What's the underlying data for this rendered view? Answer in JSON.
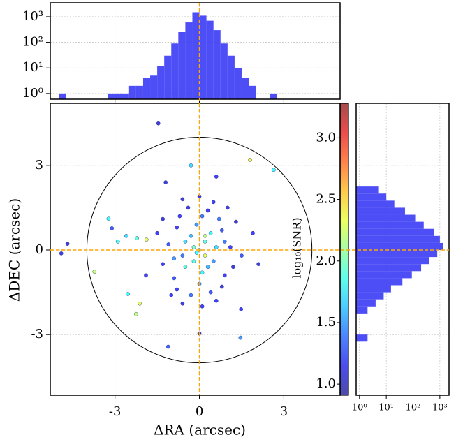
{
  "chart_data": [
    {
      "type": "scatter",
      "xlabel": "ΔRA (arcsec)",
      "ylabel": "ΔDEC (arcsec)",
      "x": [
        -1.46,
        1.8,
        2.64,
        -4.69,
        -4.91,
        -3.73,
        -3.23,
        -3.11,
        -2.22,
        -1.88,
        -2.12,
        -2.25,
        -2.54,
        -1.11,
        0,
        1.46,
        1.48,
        -2.6,
        -2.9,
        -1.9,
        1.9,
        2.1,
        -0.3,
        0.6,
        -1.2,
        0,
        0.2,
        -0.3,
        0.5,
        -0.6,
        0.1,
        -0.1,
        0.8,
        -0.8,
        0.9,
        -0.9,
        0.3,
        -0.4,
        0.4,
        -0.3,
        1.1,
        -1.1,
        0.6,
        -0.5,
        0.2,
        -0.2,
        0.7,
        -0.7,
        0.8,
        -0.8,
        1.2,
        -1.3,
        0,
        0.1,
        1.3,
        -1.3,
        0.4,
        -0.5,
        0.3,
        -0.2,
        0.9,
        -0.9,
        0.5,
        -0.6,
        0.6,
        -0.6,
        1,
        -1,
        0,
        0.1,
        -1.5,
        1.5,
        0.2,
        -0.1
      ],
      "y": [
        4.49,
        3.2,
        2.84,
        0.22,
        -0.12,
        -0.77,
        1.11,
        0.77,
        0.42,
        0.37,
        -1.9,
        -2.27,
        -1.56,
        -3.43,
        -2.96,
        -3.11,
        -2.1,
        0.5,
        0.3,
        -0.9,
        0.6,
        -0.5,
        3,
        2.6,
        2.4,
        0,
        0.3,
        0.5,
        -0.4,
        -0.2,
        -0.8,
        0.9,
        0.7,
        0.8,
        -0.9,
        -1,
        1.4,
        1.5,
        -1.5,
        -1.6,
        0.1,
        0.2,
        0.1,
        -0.6,
        -0.2,
        0.1,
        1.1,
        1.2,
        -1.3,
        -1.4,
        -0.6,
        -0.5,
        1.9,
        -2,
        1,
        1.1,
        0.6,
        0.3,
        -0.6,
        -0.4,
        0.3,
        -0.3,
        1.7,
        1.8,
        -1.8,
        -1.9,
        1.5,
        -1.6,
        -1.2,
        1.2,
        0.6,
        -0.2,
        0.5,
        -0.1
      ],
      "c": [
        1.1,
        2.4,
        1.8,
        1.1,
        1.15,
        2.2,
        1.8,
        1.3,
        1.9,
        2.3,
        2.3,
        2.2,
        1.8,
        1.3,
        1.1,
        1.5,
        1.2,
        1.7,
        1.8,
        1.2,
        1.2,
        1.1,
        1.7,
        1.2,
        1.1,
        2.1,
        1.9,
        1.6,
        1.5,
        1.4,
        1.8,
        1.5,
        1.3,
        1.2,
        1.2,
        1.3,
        1.2,
        1.1,
        1.3,
        1.4,
        1.2,
        1.3,
        1.7,
        1.9,
        2.3,
        2,
        1.4,
        1.2,
        1.1,
        1.2,
        1.1,
        1.2,
        1.1,
        1.2,
        1.1,
        1.1,
        1.8,
        1.7,
        1.6,
        1.9,
        1.4,
        1.5,
        1.2,
        1.1,
        1.2,
        1.1,
        1.1,
        1.2,
        1.5,
        1.4,
        1.2,
        1.3,
        2.2,
        1.8
      ],
      "xlim": [
        -5.3,
        5.0
      ],
      "ylim": [
        -5.15,
        5.2
      ],
      "xticks": [
        -3,
        0,
        3
      ],
      "yticks": [
        -3,
        0,
        3
      ],
      "grid": true,
      "circle_radius": 4,
      "refline": {
        "x": 0,
        "y": 0,
        "color": "#ffa500"
      },
      "colorbar": {
        "label": "log₁₀(SNR)",
        "colormap": "jet",
        "lim": [
          0.91,
          3.28
        ],
        "ticks": [
          {
            "value": 1,
            "label": "1.0"
          },
          1.5,
          {
            "value": 2,
            "label": "2.0"
          },
          2.5,
          {
            "value": 3,
            "label": "3.0"
          }
        ]
      }
    },
    {
      "type": "histogram",
      "orientation": "vertical",
      "color": "#3b3bf5",
      "log": true,
      "bins": [
        -5,
        -4.75,
        -4.5,
        -4.25,
        -4,
        -3.75,
        -3.5,
        -3.25,
        -3,
        -2.75,
        -2.5,
        -2.25,
        -2,
        -1.75,
        -1.5,
        -1.25,
        -1,
        -0.75,
        -0.5,
        -0.25,
        0,
        0.25,
        0.5,
        0.75,
        1,
        1.25,
        1.5,
        1.75,
        2,
        2.25,
        2.5,
        2.75,
        3
      ],
      "counts": [
        1,
        0,
        0,
        0,
        0,
        0,
        0,
        1,
        1,
        1,
        2,
        2,
        4,
        5,
        12,
        30,
        90,
        250,
        600,
        1500,
        1100,
        700,
        300,
        90,
        30,
        10,
        4,
        2,
        0,
        0,
        1,
        0
      ],
      "xlim": [
        -5.3,
        5.0
      ],
      "xticks": [
        -3,
        0,
        3
      ],
      "ylim": [
        0.6,
        3500
      ],
      "yticks": [
        {
          "value": 1,
          "label": "10⁰"
        },
        {
          "value": 10,
          "label": "10¹"
        },
        {
          "value": 100,
          "label": "10²"
        },
        {
          "value": 1000,
          "label": "10³"
        }
      ]
    },
    {
      "type": "histogram",
      "orientation": "horizontal",
      "color": "#3b3bf5",
      "log": true,
      "bins": [
        -3.25,
        -3,
        -2.75,
        -2.5,
        -2.25,
        -2,
        -1.75,
        -1.5,
        -1.25,
        -1,
        -0.75,
        -0.5,
        -0.25,
        0,
        0.25,
        0.5,
        0.75,
        1,
        1.25,
        1.5,
        1.75,
        2,
        2.25
      ],
      "counts": [
        2,
        0,
        0,
        0,
        2,
        4,
        8,
        15,
        40,
        90,
        200,
        400,
        800,
        1300,
        1000,
        600,
        250,
        120,
        50,
        20,
        10,
        5
      ],
      "ylim": [
        -5.15,
        5.2
      ],
      "yticks": [
        -3,
        0,
        3
      ],
      "xlim": [
        0.75,
        2200
      ],
      "xticks": [
        {
          "value": 1,
          "label": "10⁰"
        },
        {
          "value": 10,
          "label": "10¹"
        },
        {
          "value": 100,
          "label": "10²"
        },
        {
          "value": 1000,
          "label": "10³"
        }
      ]
    }
  ]
}
